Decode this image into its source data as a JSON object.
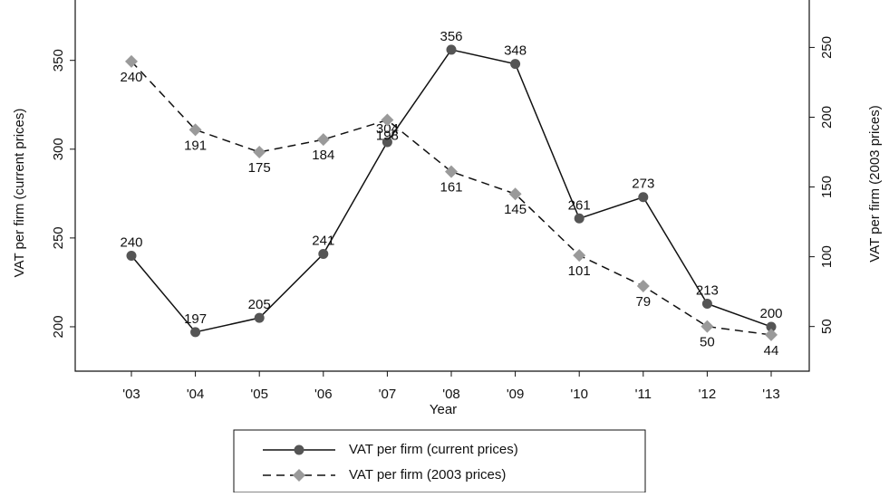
{
  "chart_data": {
    "type": "line",
    "x_label": "Year",
    "y_label": "VAT per firm (current prices)",
    "y2_label": "VAT per firm (2003 prices)",
    "categories": [
      "'03",
      "'04",
      "'05",
      "'06",
      "'07",
      "'08",
      "'09",
      "'10",
      "'11",
      "'12",
      "'13"
    ],
    "series": [
      {
        "name": "VAT per firm (current prices)",
        "color": "#555555",
        "marker": "circle",
        "dash": false,
        "values": [
          240,
          197,
          205,
          241,
          304,
          356,
          348,
          261,
          273,
          213,
          200
        ]
      },
      {
        "name": "VAT per firm (2003 prices)",
        "color": "#9a9a9a",
        "marker": "diamond",
        "dash": true,
        "axis": "y2",
        "values": [
          240,
          191,
          175,
          184,
          198,
          161,
          145,
          101,
          79,
          50,
          44
        ]
      }
    ],
    "ylim": [
      175,
      384
    ],
    "yticks": [
      200,
      250,
      300,
      350
    ],
    "y2lim": [
      18,
      284
    ],
    "y2ticks": [
      50,
      100,
      150,
      200,
      250
    ],
    "grid": false,
    "legend": "bottom"
  }
}
